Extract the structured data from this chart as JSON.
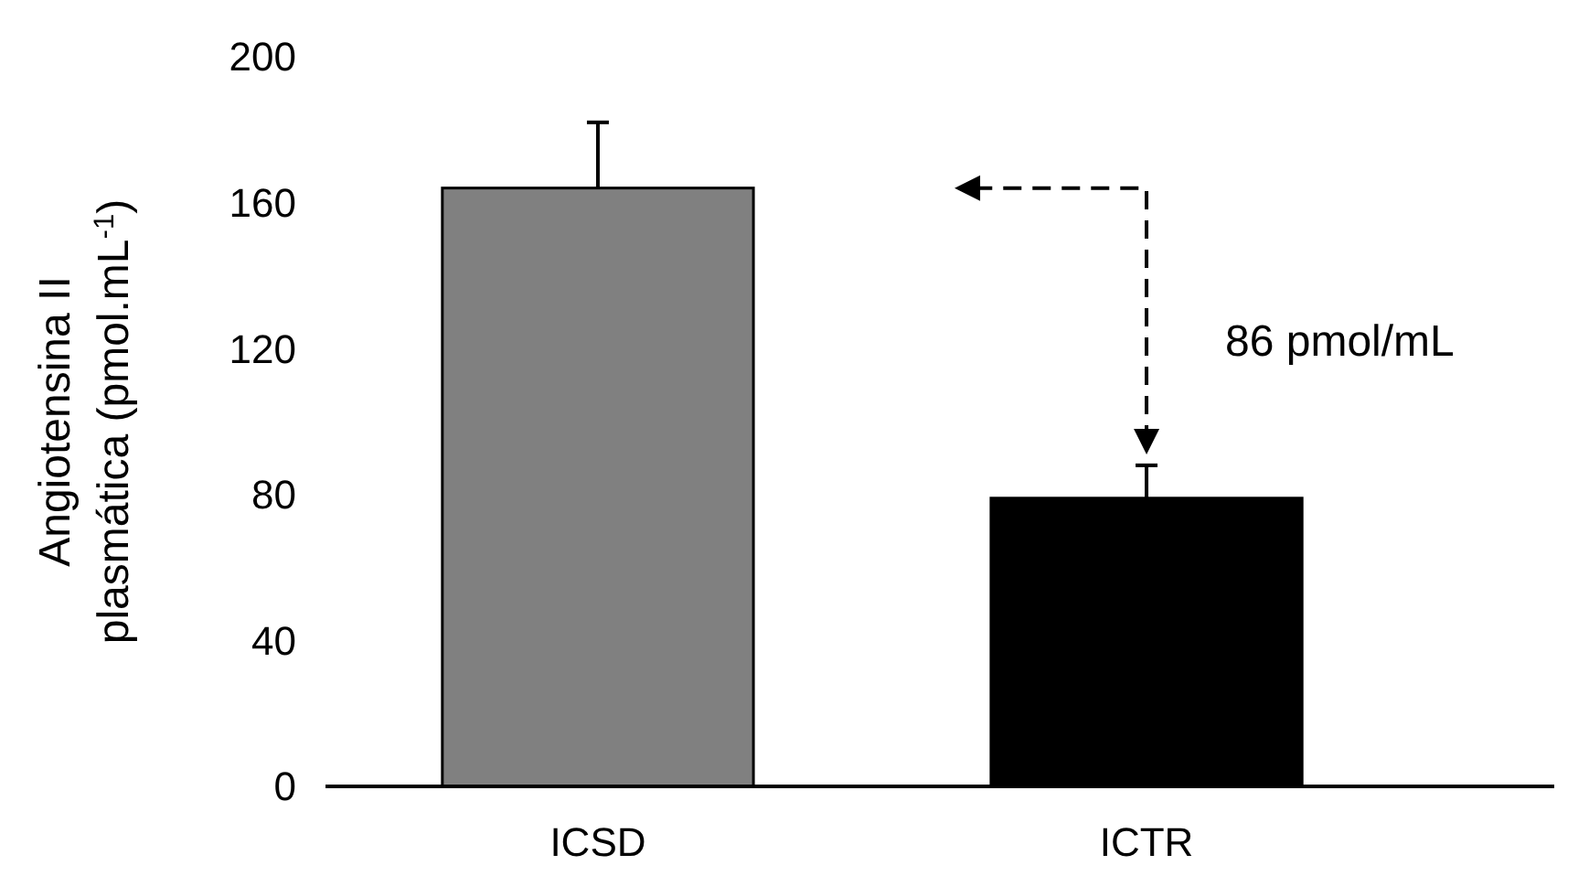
{
  "chart_data": {
    "type": "bar",
    "ylabel": "Angiotensina II\nplasmática (pmol.mL$^{-1}$)",
    "categories": [
      "ICSD",
      "ICTR"
    ],
    "values": [
      164,
      79
    ],
    "colors": [
      "#808080",
      "#000000"
    ],
    "errors": [
      [
        164,
        182
      ],
      [
        79,
        88
      ]
    ],
    "ylim": [
      0,
      200
    ],
    "yticks": [
      0,
      40,
      80,
      120,
      160,
      200
    ],
    "annotations": [
      "86 pmol/mL"
    ]
  }
}
